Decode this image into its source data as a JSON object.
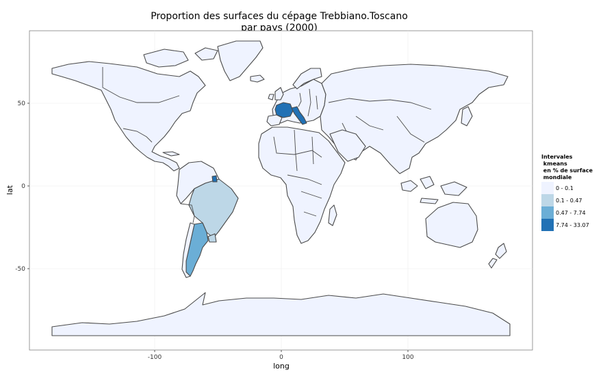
{
  "title": {
    "line1": "Proportion des surfaces du cépage Trebbiano.Toscano",
    "line2": "par pays (2000)"
  },
  "axes": {
    "xlabel": "long",
    "ylabel": "lat",
    "x_ticks": [
      "-100",
      "0",
      "100"
    ],
    "y_ticks": [
      "50",
      "0",
      "-50"
    ]
  },
  "legend": {
    "title_lines": [
      "Intervales",
      " kmeans",
      " en % de surface",
      " mondiale"
    ],
    "items": [
      {
        "label": "0 - 0.1",
        "color": "#eff3ff"
      },
      {
        "label": "0.1 - 0.47",
        "color": "#bdd7e7"
      },
      {
        "label": "0.47 - 7.74",
        "color": "#6baed6"
      },
      {
        "label": "7.74 - 33.07",
        "color": "#2171b5"
      }
    ]
  },
  "chart_data": {
    "type": "choropleth",
    "xlim": [
      -180,
      180
    ],
    "ylim": [
      -90,
      90
    ],
    "regions": [
      {
        "name": "France",
        "class": "7.74 - 33.07"
      },
      {
        "name": "Italy",
        "class": "7.74 - 33.07"
      },
      {
        "name": "French Guiana",
        "class": "7.74 - 33.07"
      },
      {
        "name": "Argentina",
        "class": "0.47 - 7.74"
      },
      {
        "name": "Brazil",
        "class": "0.1 - 0.47"
      },
      {
        "name": "Uruguay",
        "class": "0.1 - 0.47"
      },
      {
        "name": "Other countries",
        "class": "0 - 0.1"
      }
    ]
  }
}
